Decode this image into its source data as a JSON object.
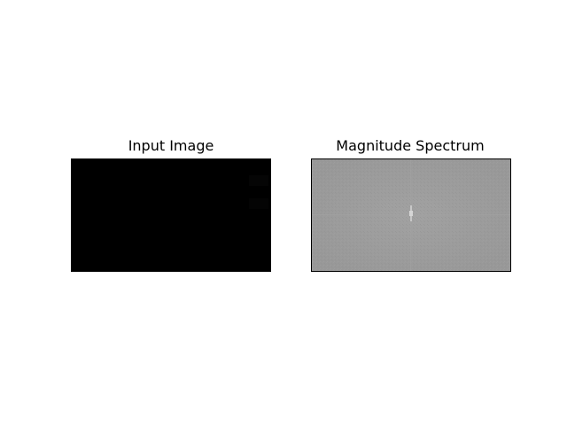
{
  "figure": {
    "background": "#ffffff"
  },
  "panels": [
    {
      "title": "Input Image",
      "fill": "#000000"
    },
    {
      "title": "Magnitude Spectrum",
      "fill": "#9a9a9a"
    }
  ]
}
